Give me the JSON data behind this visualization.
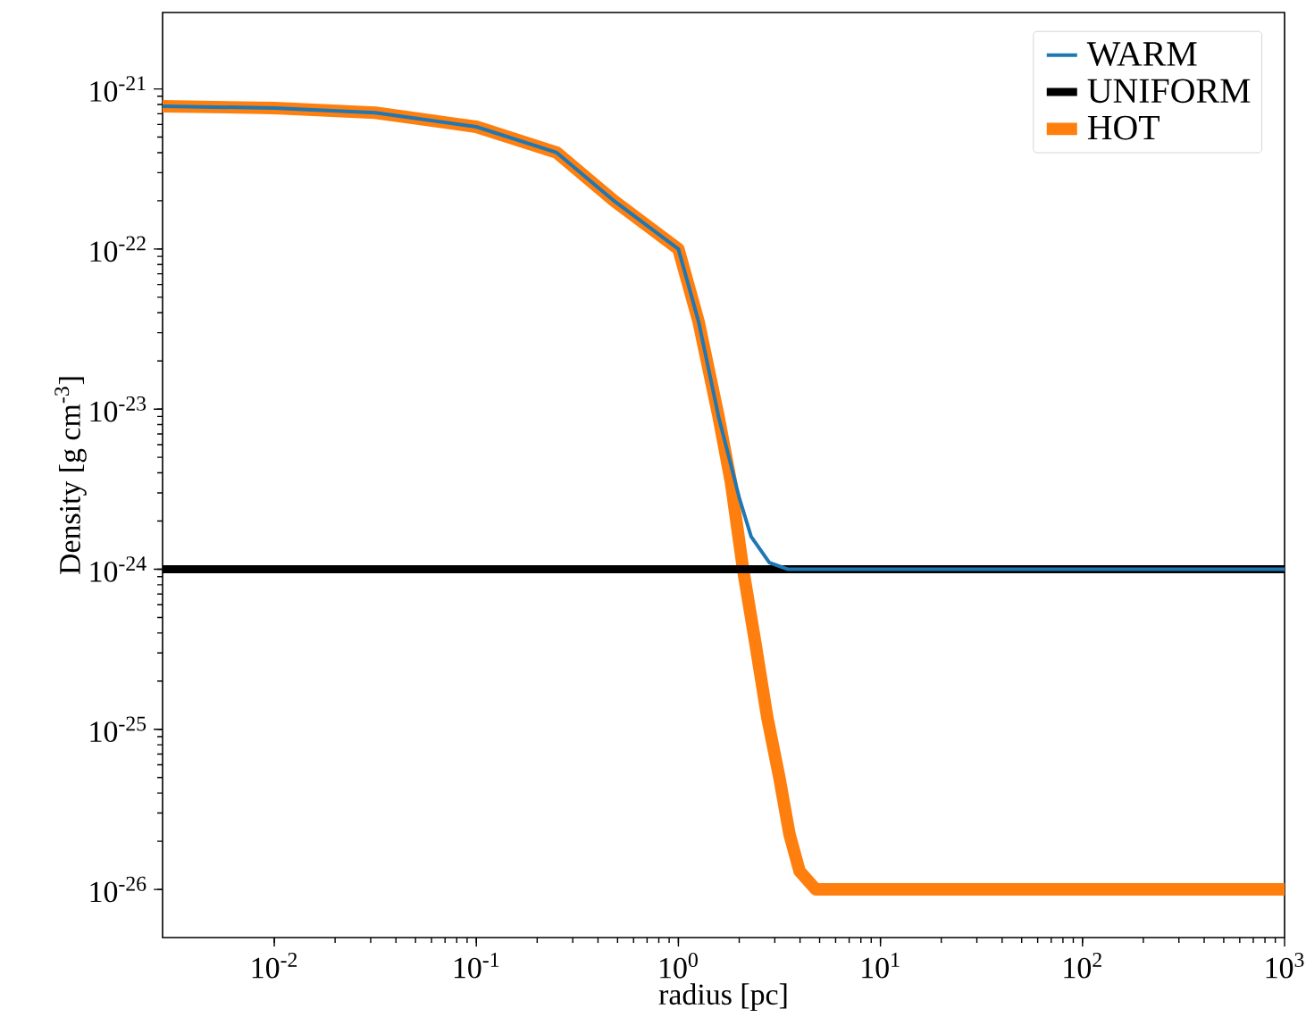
{
  "chart_data": {
    "type": "line",
    "xlabel": "radius [pc]",
    "ylabel": "Density [g cm$^{-3}$]",
    "log": "xy",
    "legend": "top right",
    "grid": false,
    "marker": "none",
    "line_style": "solid",
    "xlim": [
      0.0028,
      1000
    ],
    "ylim": [
      5e-27,
      3e-21
    ],
    "xticks": [
      {
        "value": 0.01,
        "label": "10$^{-2}$"
      },
      {
        "value": 0.1,
        "label": "10$^{-1}$"
      },
      {
        "value": 1,
        "label": "10$^{0}$"
      },
      {
        "value": 10,
        "label": "10$^{1}$"
      },
      {
        "value": 100,
        "label": "10$^{2}$"
      },
      {
        "value": 1000,
        "label": "10$^{3}$"
      }
    ],
    "yticks": [
      {
        "value": 1e-26,
        "label": "10$^{-26}$"
      },
      {
        "value": 1e-25,
        "label": "10$^{-25}$"
      },
      {
        "value": 1e-24,
        "label": "10$^{-24}$"
      },
      {
        "value": 1e-23,
        "label": "10$^{-23}$"
      },
      {
        "value": 1e-22,
        "label": "10$^{-22}$"
      },
      {
        "value": 1e-21,
        "label": "10$^{-21}$"
      }
    ],
    "series": [
      {
        "name": "WARM",
        "color": "#1f77b4",
        "x": [
          0.0028,
          0.01,
          0.0316,
          0.1,
          0.25,
          0.48,
          1,
          1.26,
          1.58,
          2,
          2.29,
          2.82,
          3.47,
          1000
        ],
        "values": [
          7.8e-22,
          7.6e-22,
          7.1e-22,
          5.8e-22,
          4e-22,
          2e-22,
          1e-22,
          3.5e-23,
          9e-24,
          2.8e-24,
          1.6e-24,
          1.1e-24,
          1e-24,
          1e-24
        ]
      },
      {
        "name": "UNIFORM",
        "color": "#000000",
        "x": [
          0.0028,
          1000
        ],
        "values": [
          1e-24,
          1e-24
        ]
      },
      {
        "name": "HOT",
        "color": "#ff7f0e",
        "x": [
          0.0028,
          0.01,
          0.0316,
          0.1,
          0.25,
          0.48,
          1,
          1.26,
          1.58,
          1.82,
          2.09,
          2.4,
          2.75,
          3.16,
          3.55,
          3.98,
          4.79,
          1000
        ],
        "values": [
          7.8e-22,
          7.6e-22,
          7.1e-22,
          5.8e-22,
          4e-22,
          2e-22,
          1e-22,
          3.5e-23,
          9e-24,
          3.5e-24,
          1e-24,
          3.5e-25,
          1.2e-25,
          5e-26,
          2.2e-26,
          1.3e-26,
          1e-26,
          1e-26
        ]
      }
    ]
  }
}
